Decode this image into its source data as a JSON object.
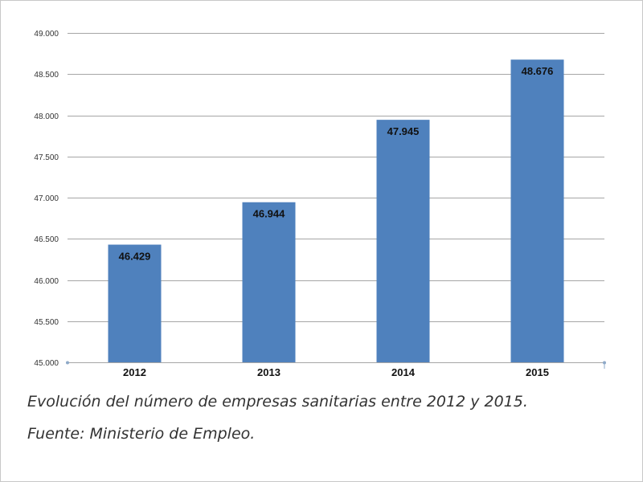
{
  "caption": {
    "line1": "Evolución del número de empresas sanitarias entre 2012 y 2015.",
    "line2": "Fuente: Ministerio de Empleo."
  },
  "chart_data": {
    "type": "bar",
    "title": "",
    "xlabel": "",
    "ylabel": "",
    "categories": [
      "2012",
      "2013",
      "2014",
      "2015"
    ],
    "values": [
      46429,
      46944,
      47945,
      48676
    ],
    "value_labels": [
      "46.429",
      "46.944",
      "47.945",
      "48.676"
    ],
    "ylim": [
      45000,
      49000
    ],
    "yticks": [
      45000,
      45500,
      46000,
      46500,
      47000,
      47500,
      48000,
      48500,
      49000
    ],
    "ytick_labels": [
      "45.000",
      "45.500",
      "46.000",
      "46.500",
      "47.000",
      "47.500",
      "48.000",
      "48.500",
      "49.000"
    ],
    "grid": true,
    "legend": "none",
    "bar_color": "#4f81bd",
    "grid_color": "#a6a6a6"
  }
}
